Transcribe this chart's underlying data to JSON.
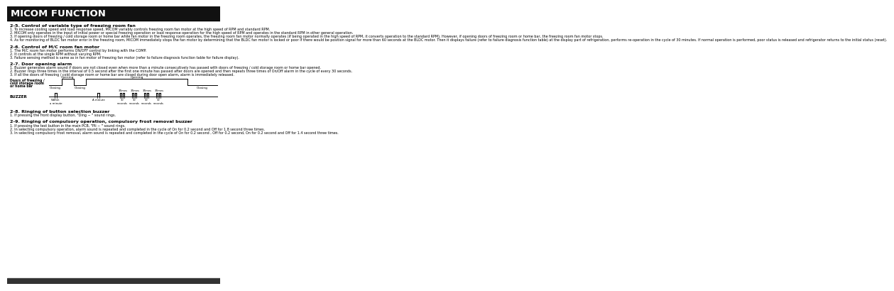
{
  "title": "MICOM FUNCTION",
  "bg_color": "#ffffff",
  "title_bg": "#111111",
  "title_fg": "#ffffff",
  "title_fontsize": 9.5,
  "heading_fontsize": 4.6,
  "body_fontsize": 3.55,
  "sections": [
    {
      "heading": "2-5. Control of variable type of freezing room fan",
      "items": [
        "1.  To increase cooling speed and load response speed, MICOM variably controls freezing room fan motor at the high speed of RPM and standard RPM.",
        "2.  MICOM only operates in the input of initial power or special freezing operation or load response operation for the high speed of RPM and operates in the standard RPM in other general operation.",
        "3.  If opening doors of freezing / cold storage room or home bar while fan motor in the freezing room operates, the freezing room fan motor normally operates (if being operated in the high speed of RPM, it converts operation to the standard RPM). However, if opening doors of freezing room or home bar, the freezing room fan motor stops.",
        "4.  As for monitoring of BLDC fan motor error in the freezing room, MICOM immediately stops the fan motor by determining that the BLDC fan motor is locked or poor if there would be position signal for more than 60 seconds at the BLDC motor. Then it displays failure (refer to failure diagnosis function table) at the display part of refrigeration, performs re-operation in the cycle of 30 minutes. If normal operation is performed, poor status is released and refrigerator returns to the initial status (reset)."
      ]
    },
    {
      "heading": "2-6. Control of M/C room fan motor",
      "items": [
        "1.  The M/C room fan motor performs ON/OFF control by linking with the COMP.",
        "2.  It controls at the single RPM without varying RPM.",
        "3.  Failure sensing method is same as in fan motor of freezing fan motor (refer to failure diagnosis function table for failure display)."
      ]
    },
    {
      "heading": "2-7. Door opening alarm",
      "items": [
        "1.  Buzzer generates alarm sound if doors are not closed even when more than a minute consecutively has passed with doors of freezing / cold storage room or home bar opened.",
        "2.  Buzzer rings three times in the interval of 0.5 second after the first one minute has passed after doors are opened and then repeats three times of On/Off alarm in the cycle of every 30 seconds.",
        "3.  If all the doors of freezing / cold storage room or home bar are closed during door open alarm, alarm is immediately released."
      ],
      "has_diagram": true
    },
    {
      "heading": "2-8. Ringing of button selection buzzer",
      "items": [
        "1.  If pressing the front display button, \"Ding ~ \" sound rings."
      ]
    },
    {
      "heading": "2-9. Ringing of compulsory operation, compulsory frost removal buzzer",
      "items": [
        "1.  If pressing the test button in the main PCB, \"Pli ~ \" sound rings.",
        "2.  In selecting compulsory operation, alarm sound is repeated and completed in the cycle of On for 0.2 second and Off for 1.8 second three times.",
        "3.  In selecting compulsory frost removal, alarm sound is repeated and completed in the cycle of On for 0.2 second , Off for 0.2 second, On for 0.2 second and Off for 1.4 second three times."
      ]
    }
  ],
  "diagram": {
    "door_labels": [
      "Closing",
      "Opening",
      "Closing",
      "Opening",
      "Closing"
    ],
    "times_labels": [
      "3Times",
      "3Times",
      "3Times",
      "3Times"
    ],
    "timing_labels": [
      "Within\na minute",
      "A minute",
      "30\nseconds",
      "30\nseconds",
      "30\nseconds"
    ]
  }
}
